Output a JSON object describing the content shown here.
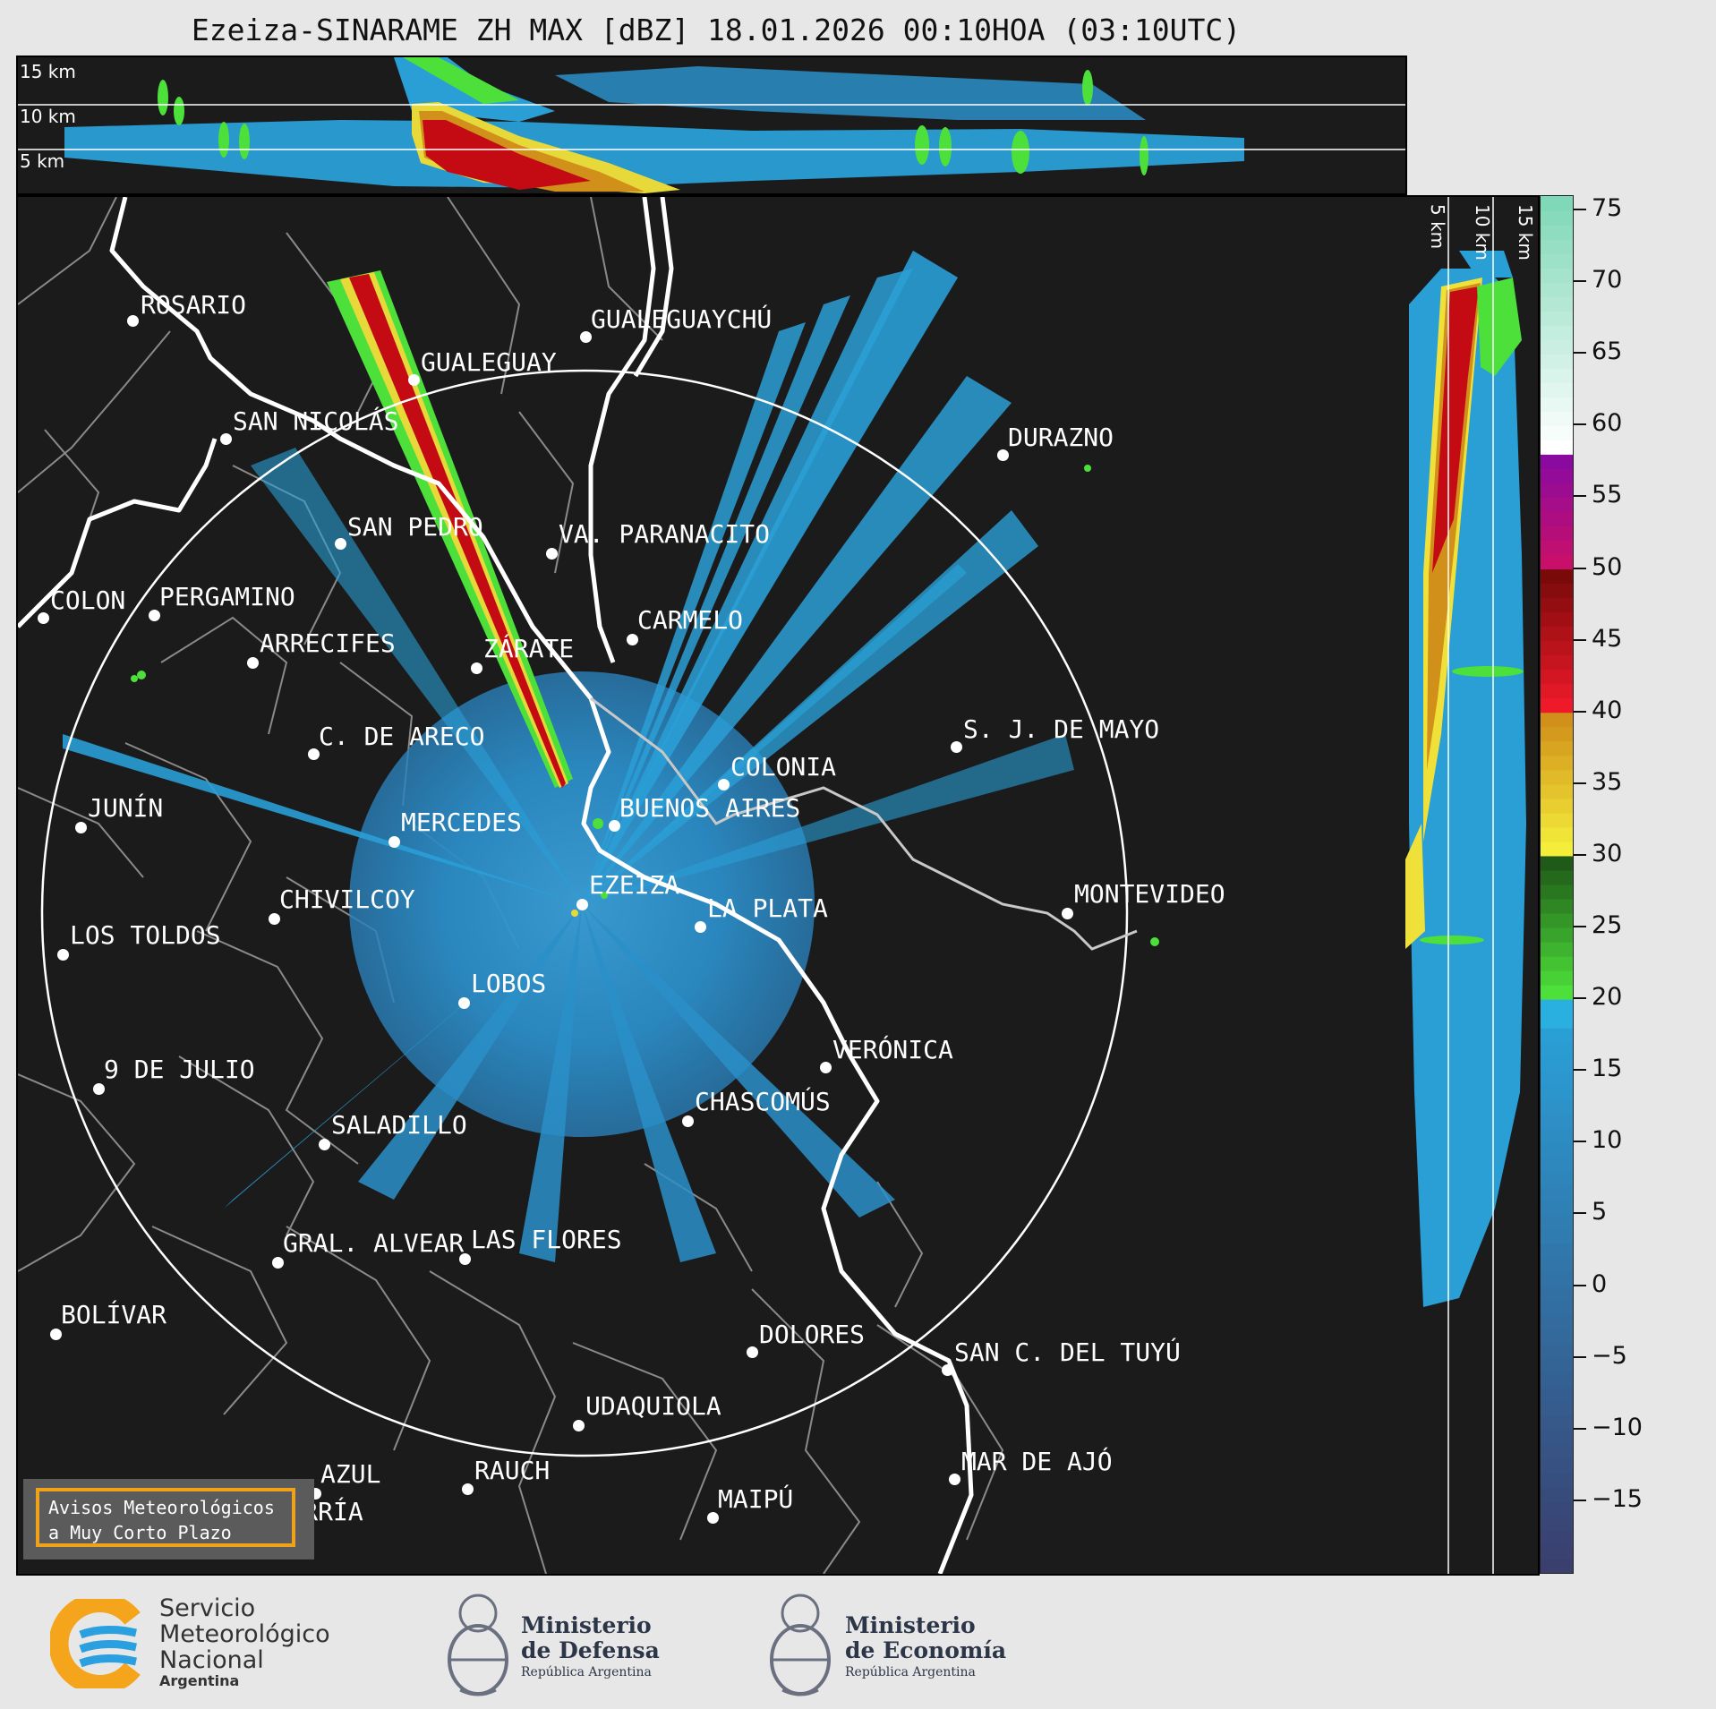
{
  "title": "Ezeiza-SINARAME ZH MAX [dBZ] 18.01.2026 00:10HOA (03:10UTC)",
  "top_panel": {
    "km_labels": [
      "15 km",
      "10 km",
      "5 km"
    ]
  },
  "side_panel": {
    "km_labels": [
      "5 km",
      "10 km",
      "15 km"
    ]
  },
  "colorbar": {
    "unit": "dBZ",
    "tick_labels": [
      "75",
      "70",
      "65",
      "60",
      "55",
      "50",
      "45",
      "40",
      "35",
      "30",
      "25",
      "20",
      "15",
      "10",
      "5",
      "0",
      "−5",
      "−10",
      "−15"
    ],
    "range": [
      -20,
      76
    ],
    "colors": [
      {
        "from": -20,
        "to": 18,
        "start": "#3a3f6e",
        "end": "#2a9fd6"
      },
      {
        "from": 18,
        "to": 20,
        "color": "#2ab0e0"
      },
      {
        "from": 20,
        "to": 30,
        "start": "#4de03a",
        "end": "#1f5a18"
      },
      {
        "from": 30,
        "to": 40,
        "start": "#f4ee3a",
        "end": "#d0901a"
      },
      {
        "from": 40,
        "to": 50,
        "start": "#ee1a2a",
        "end": "#7a0a0a"
      },
      {
        "from": 50,
        "to": 58,
        "start": "#c8106a",
        "end": "#8a0aa0"
      },
      {
        "from": 58,
        "to": 76,
        "start": "#ffffff",
        "end": "#7fd8b8"
      }
    ]
  },
  "cities": [
    {
      "name": "ROSARIO"
    },
    {
      "name": "GUALEGUAYCHÚ"
    },
    {
      "name": "GUALEGUAY"
    },
    {
      "name": "SAN NICOLÁS"
    },
    {
      "name": "DURAZNO"
    },
    {
      "name": "SAN PEDRO"
    },
    {
      "name": "VA. PARANACITO"
    },
    {
      "name": "COLON"
    },
    {
      "name": "PERGAMINO"
    },
    {
      "name": "CARMELO"
    },
    {
      "name": "ARRECIFES"
    },
    {
      "name": "ZÁRATE"
    },
    {
      "name": "C. DE ARECO"
    },
    {
      "name": "S. J. DE MAYO"
    },
    {
      "name": "COLONIA"
    },
    {
      "name": "JUNÍN"
    },
    {
      "name": "BUENOS AIRES"
    },
    {
      "name": "MERCEDES"
    },
    {
      "name": "MONTEVIDEO"
    },
    {
      "name": "EZEIZA"
    },
    {
      "name": "CHIVILCOY"
    },
    {
      "name": "LA PLATA"
    },
    {
      "name": "LOS TOLDOS"
    },
    {
      "name": "LOBOS"
    },
    {
      "name": "VERÓNICA"
    },
    {
      "name": "9 DE JULIO"
    },
    {
      "name": "CHASCOMÚS"
    },
    {
      "name": "SALADILLO"
    },
    {
      "name": "GRAL. ALVEAR"
    },
    {
      "name": "LAS FLORES"
    },
    {
      "name": "BOLÍVAR"
    },
    {
      "name": "DOLORES"
    },
    {
      "name": "SAN C. DEL TUYÚ"
    },
    {
      "name": "UDAQUIOLA"
    },
    {
      "name": "AZUL"
    },
    {
      "name": "RAUCH"
    },
    {
      "name": "MAR DE AJÓ"
    },
    {
      "name": "OLAVARRÍA"
    },
    {
      "name": "MAIPÚ"
    }
  ],
  "avisos": {
    "line1": "Avisos Meteorológicos",
    "line2": "a Muy Corto Plazo"
  },
  "logos": {
    "smn": {
      "line1": "Servicio",
      "line2": "Meteorológico",
      "line3": "Nacional",
      "line4": "Argentina"
    },
    "defensa": {
      "line1": "Ministerio",
      "line2": "de Defensa",
      "line3": "República Argentina"
    },
    "economia": {
      "line1": "Ministerio",
      "line2": "de Economía",
      "line3": "República Argentina"
    }
  }
}
